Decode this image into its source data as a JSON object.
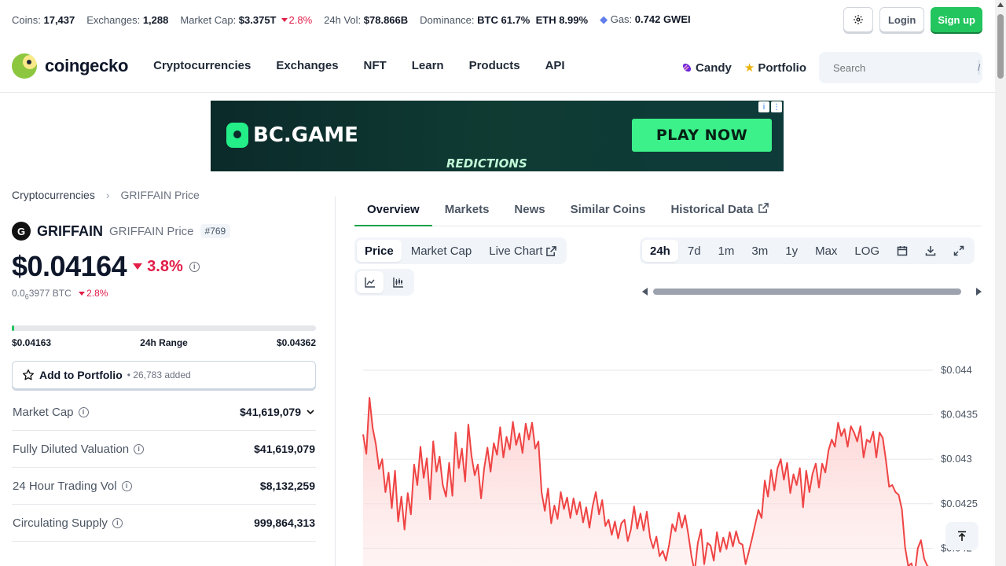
{
  "topbar": {
    "coins_label": "Coins:",
    "coins": "17,437",
    "exchanges_label": "Exchanges:",
    "exchanges": "1,288",
    "mcap_label": "Market Cap:",
    "mcap": "$3.375T",
    "mcap_change": "2.8%",
    "vol_label": "24h Vol:",
    "vol": "$78.866B",
    "dominance_label": "Dominance:",
    "dom_btc": "BTC 61.7%",
    "dom_eth": "ETH 8.99%",
    "gas_label": "Gas:",
    "gas": "0.742 GWEI",
    "login": "Login",
    "signup": "Sign up"
  },
  "nav": {
    "logo": "coingecko",
    "links": [
      "Cryptocurrencies",
      "Exchanges",
      "NFT",
      "Learn",
      "Products",
      "API"
    ],
    "candy": "Candy",
    "portfolio": "Portfolio",
    "search_placeholder": "Search",
    "search_key": "/"
  },
  "ad": {
    "brand": "BC.GAME",
    "cta": "PLAY NOW",
    "tagline": "REDICTIONS"
  },
  "breadcrumb": {
    "root": "Cryptocurrencies",
    "current": "GRIFFAIN Price"
  },
  "coin": {
    "logo_letter": "G",
    "name": "GRIFFAIN",
    "sub": "GRIFFAIN Price",
    "rank": "#769",
    "price": "$0.04164",
    "change": "3.8%",
    "btc_prefix": "0.0",
    "btc_sub": "6",
    "btc_rest": "3977 BTC",
    "btc_change": "2.8%",
    "range_low": "$0.04163",
    "range_label": "24h Range",
    "range_high": "$0.04362",
    "range_fraction": 0.005,
    "portfolio_btn": "Add to Portfolio",
    "portfolio_added": "• 26,783 added"
  },
  "stats": [
    {
      "label": "Market Cap",
      "value": "$41,619,079"
    },
    {
      "label": "Fully Diluted Valuation",
      "value": "$41,619,079"
    },
    {
      "label": "24 Hour Trading Vol",
      "value": "$8,132,259"
    },
    {
      "label": "Circulating Supply",
      "value": "999,864,313"
    }
  ],
  "tabs": [
    "Overview",
    "Markets",
    "News",
    "Similar Coins",
    "Historical Data"
  ],
  "chart_controls": {
    "price_tabs": [
      "Price",
      "Market Cap",
      "Live Chart"
    ],
    "time_tabs": [
      "24h",
      "7d",
      "1m",
      "3m",
      "1y",
      "Max",
      "LOG"
    ]
  },
  "colors": {
    "accent": "#22c55e",
    "negative": "#e11d48",
    "line": "#ef4444"
  },
  "chart_data": {
    "type": "area",
    "ylim": [
      0.0418,
      0.04445
    ],
    "yticks": [
      "$0.044",
      "$0.0435",
      "$0.043",
      "$0.0425",
      "$0.042"
    ],
    "ytick_values": [
      0.044,
      0.0435,
      0.043,
      0.0425,
      0.042
    ],
    "values": [
      0.04328,
      0.04306,
      0.04369,
      0.04335,
      0.04317,
      0.04289,
      0.043,
      0.04263,
      0.04285,
      0.04245,
      0.04287,
      0.0423,
      0.04258,
      0.04221,
      0.04262,
      0.04238,
      0.04294,
      0.04271,
      0.04314,
      0.04279,
      0.04301,
      0.04255,
      0.0432,
      0.04286,
      0.04303,
      0.04271,
      0.04258,
      0.04296,
      0.04259,
      0.0433,
      0.0429,
      0.04312,
      0.04275,
      0.04339,
      0.04304,
      0.04282,
      0.04294,
      0.04256,
      0.0429,
      0.04313,
      0.04286,
      0.04318,
      0.04305,
      0.04336,
      0.04302,
      0.04325,
      0.04311,
      0.04342,
      0.04316,
      0.04329,
      0.04307,
      0.0434,
      0.04322,
      0.04341,
      0.04312,
      0.0432,
      0.04263,
      0.04242,
      0.04267,
      0.04228,
      0.04248,
      0.04233,
      0.04263,
      0.04244,
      0.04257,
      0.04234,
      0.04256,
      0.04238,
      0.04252,
      0.04229,
      0.04246,
      0.04223,
      0.04247,
      0.04263,
      0.04238,
      0.04254,
      0.04225,
      0.04232,
      0.04215,
      0.0423,
      0.04211,
      0.04228,
      0.04232,
      0.04208,
      0.04221,
      0.04247,
      0.04222,
      0.04239,
      0.0422,
      0.04241,
      0.04212,
      0.042,
      0.04213,
      0.04191,
      0.04197,
      0.04186,
      0.04204,
      0.04227,
      0.04219,
      0.0424,
      0.04223,
      0.04237,
      0.04216,
      0.04191,
      0.04173,
      0.04206,
      0.04221,
      0.04182,
      0.04206,
      0.04203,
      0.04186,
      0.04218,
      0.04196,
      0.04212,
      0.04199,
      0.04218,
      0.04202,
      0.04219,
      0.04206,
      0.04204,
      0.04182,
      0.04196,
      0.04211,
      0.04227,
      0.04243,
      0.04234,
      0.04276,
      0.04258,
      0.04288,
      0.04265,
      0.0429,
      0.043,
      0.04277,
      0.04296,
      0.04262,
      0.04283,
      0.04271,
      0.0429,
      0.04246,
      0.04287,
      0.04263,
      0.04284,
      0.04295,
      0.04268,
      0.04295,
      0.04285,
      0.0431,
      0.04322,
      0.04314,
      0.04341,
      0.04326,
      0.04334,
      0.04314,
      0.04337,
      0.0433,
      0.0432,
      0.04337,
      0.04302,
      0.04322,
      0.04319,
      0.04331,
      0.04302,
      0.0433,
      0.04324,
      0.04299,
      0.04269,
      0.04271,
      0.04263,
      0.0426,
      0.04244,
      0.04201,
      0.0418,
      0.04183,
      0.0417,
      0.042,
      0.04209,
      0.04188,
      0.0418,
      0.04178
    ]
  }
}
